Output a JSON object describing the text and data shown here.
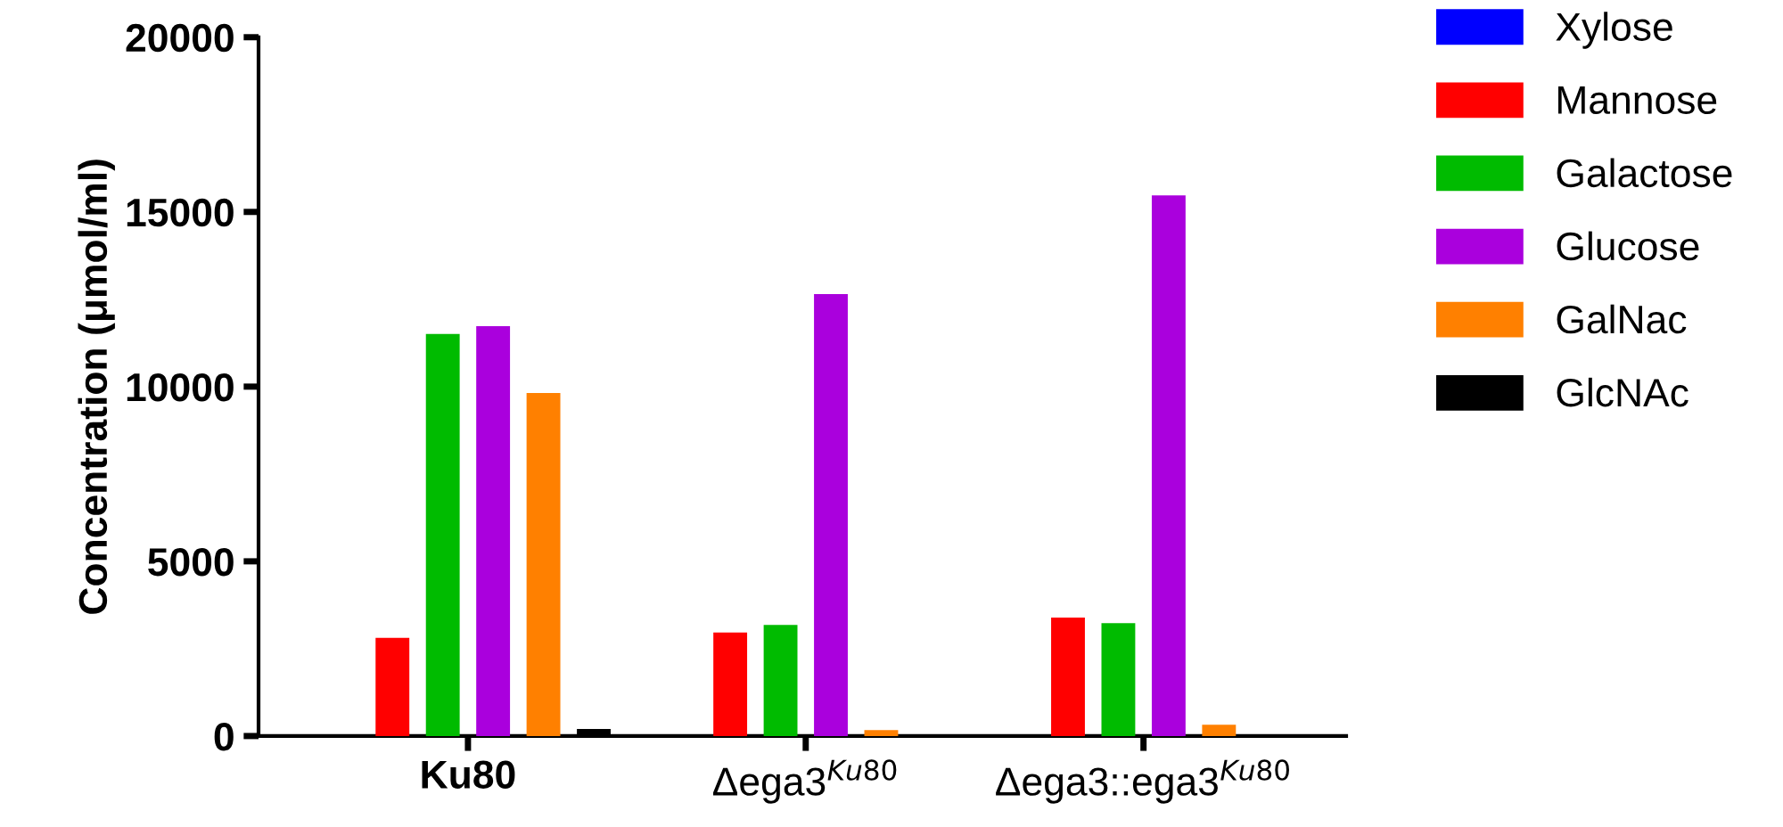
{
  "chart_data": {
    "type": "bar",
    "ylabel": "Concentration (μmol/ml)",
    "categories": [
      "Ku80",
      "Δega3$^{Ku80}$",
      "Δega3::ega3$^{Ku80}$"
    ],
    "series": [
      {
        "name": "Xylose",
        "color": "#0000ff",
        "values": [
          0,
          0,
          0
        ]
      },
      {
        "name": "Mannose",
        "color": "#ff0000",
        "values": [
          2810,
          2960,
          3390
        ]
      },
      {
        "name": "Galactose",
        "color": "#00bb00",
        "values": [
          11510,
          3180,
          3230
        ]
      },
      {
        "name": "Glucose",
        "color": "#aa00dd",
        "values": [
          11730,
          12650,
          15470
        ]
      },
      {
        "name": "GalNac",
        "color": "#ff8000",
        "values": [
          9820,
          170,
          320
        ]
      },
      {
        "name": "GlcNAc",
        "color": "#000000",
        "values": [
          200,
          0,
          0
        ]
      }
    ],
    "ylim": [
      0,
      20000
    ],
    "yticks": [
      0,
      5000,
      10000,
      15000,
      20000
    ],
    "grid": false,
    "legend": "right"
  }
}
